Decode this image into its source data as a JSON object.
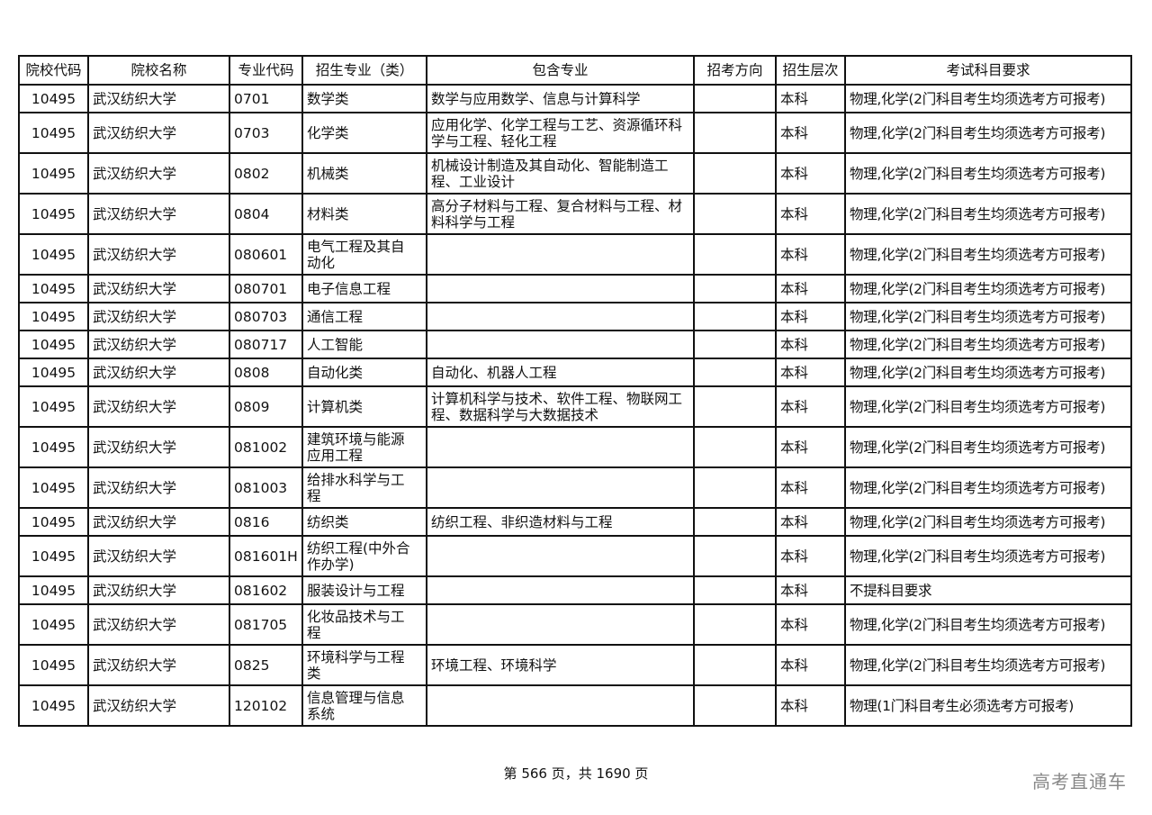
{
  "table": {
    "headers": [
      "院校代码",
      "院校名称",
      "专业代码",
      "招生专业（类）",
      "包含专业",
      "招考方向",
      "招生层次",
      "考试科目要求"
    ],
    "rows": [
      [
        "10495",
        "武汉纺织大学",
        "0701",
        "数学类",
        "数学与应用数学、信息与计算科学",
        "",
        "本科",
        "物理,化学(2门科目考生均须选考方可报考)"
      ],
      [
        "10495",
        "武汉纺织大学",
        "0703",
        "化学类",
        "应用化学、化学工程与工艺、资源循环科学与工程、轻化工程",
        "",
        "本科",
        "物理,化学(2门科目考生均须选考方可报考)"
      ],
      [
        "10495",
        "武汉纺织大学",
        "0802",
        "机械类",
        "机械设计制造及其自动化、智能制造工程、工业设计",
        "",
        "本科",
        "物理,化学(2门科目考生均须选考方可报考)"
      ],
      [
        "10495",
        "武汉纺织大学",
        "0804",
        "材料类",
        "高分子材料与工程、复合材料与工程、材料科学与工程",
        "",
        "本科",
        "物理,化学(2门科目考生均须选考方可报考)"
      ],
      [
        "10495",
        "武汉纺织大学",
        "080601",
        "电气工程及其自动化",
        "",
        "",
        "本科",
        "物理,化学(2门科目考生均须选考方可报考)"
      ],
      [
        "10495",
        "武汉纺织大学",
        "080701",
        "电子信息工程",
        "",
        "",
        "本科",
        "物理,化学(2门科目考生均须选考方可报考)"
      ],
      [
        "10495",
        "武汉纺织大学",
        "080703",
        "通信工程",
        "",
        "",
        "本科",
        "物理,化学(2门科目考生均须选考方可报考)"
      ],
      [
        "10495",
        "武汉纺织大学",
        "080717",
        "人工智能",
        "",
        "",
        "本科",
        "物理,化学(2门科目考生均须选考方可报考)"
      ],
      [
        "10495",
        "武汉纺织大学",
        "0808",
        "自动化类",
        "自动化、机器人工程",
        "",
        "本科",
        "物理,化学(2门科目考生均须选考方可报考)"
      ],
      [
        "10495",
        "武汉纺织大学",
        "0809",
        "计算机类",
        "计算机科学与技术、软件工程、物联网工程、数据科学与大数据技术",
        "",
        "本科",
        "物理,化学(2门科目考生均须选考方可报考)"
      ],
      [
        "10495",
        "武汉纺织大学",
        "081002",
        "建筑环境与能源应用工程",
        "",
        "",
        "本科",
        "物理,化学(2门科目考生均须选考方可报考)"
      ],
      [
        "10495",
        "武汉纺织大学",
        "081003",
        "给排水科学与工程",
        "",
        "",
        "本科",
        "物理,化学(2门科目考生均须选考方可报考)"
      ],
      [
        "10495",
        "武汉纺织大学",
        "0816",
        "纺织类",
        "纺织工程、非织造材料与工程",
        "",
        "本科",
        "物理,化学(2门科目考生均须选考方可报考)"
      ],
      [
        "10495",
        "武汉纺织大学",
        "081601H",
        "纺织工程(中外合作办学)",
        "",
        "",
        "本科",
        "物理,化学(2门科目考生均须选考方可报考)"
      ],
      [
        "10495",
        "武汉纺织大学",
        "081602",
        "服装设计与工程",
        "",
        "",
        "本科",
        "不提科目要求"
      ],
      [
        "10495",
        "武汉纺织大学",
        "081705",
        "化妆品技术与工程",
        "",
        "",
        "本科",
        "物理,化学(2门科目考生均须选考方可报考)"
      ],
      [
        "10495",
        "武汉纺织大学",
        "0825",
        "环境科学与工程类",
        "环境工程、环境科学",
        "",
        "本科",
        "物理,化学(2门科目考生均须选考方可报考)"
      ],
      [
        "10495",
        "武汉纺织大学",
        "120102",
        "信息管理与信息系统",
        "",
        "",
        "本科",
        "物理(1门科目考生必须选考方可报考)"
      ]
    ]
  },
  "footer": {
    "page_text": "第 566 页，共 1690 页"
  },
  "watermark": "高考直通车"
}
